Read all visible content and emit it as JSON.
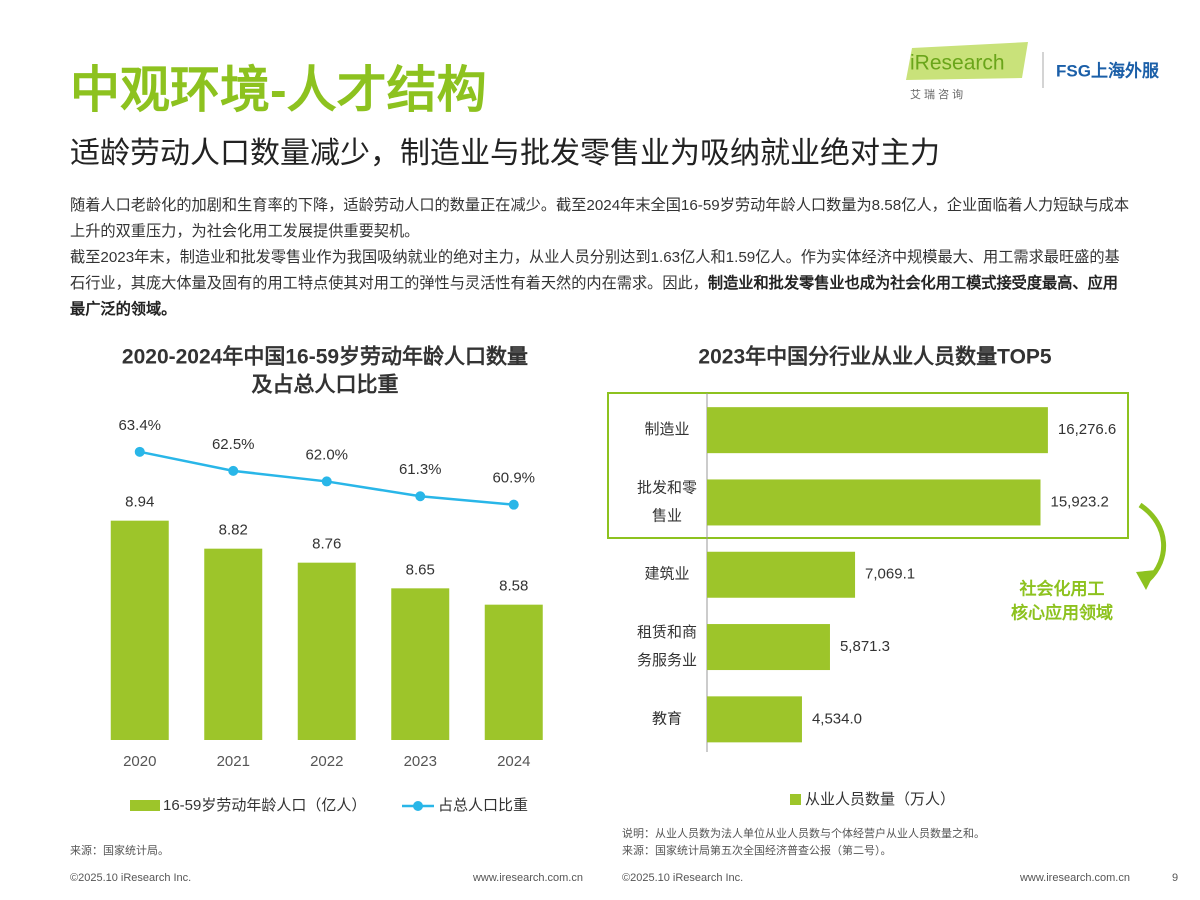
{
  "header": {
    "title": "中观环境-人才结构",
    "subtitle": "适龄劳动人口数量减少，制造业与批发零售业为吸纳就业绝对主力",
    "logo": "iResearch",
    "logo_sub": "艾 瑞 咨 询",
    "partner": "FSG上海外服"
  },
  "body": {
    "paragraphs": [
      [
        "随着人口老龄化的加剧和生育率的下降，适龄劳动人口的数量正在减少。截至2024年末全国16-59岁劳动年龄人口数量为8.58亿人，企业面临着人力短缺与成本上升的双重压力，为社会化用工发展提供重要契机。"
      ],
      [
        "截至2023年末，制造业和批发零售业作为我国吸纳就业的绝对主力，从业人员分别达到1.63亿人和1.59亿人。作为实体经济中规模最大、用工需求最旺盛的基石行业，其庞大体量及固有的用工特点使其对用工的弹性与灵活性有着天然的内在需求。因此，",
        "制造业和批发零售业也成为社会化用工模式接受度最高、应用最广泛的领域。"
      ]
    ]
  },
  "chart_data": [
    {
      "type": "bar_line",
      "title": [
        "2020-2024年中国16-59岁劳动年龄人口数量",
        "及占总人口比重"
      ],
      "categories": [
        "2020",
        "2021",
        "2022",
        "2023",
        "2024"
      ],
      "ylim": [
        8,
        9.2
      ],
      "y2lim": [
        58,
        65
      ],
      "series": [
        {
          "name": "16-59岁劳动年龄人口（亿人）",
          "type": "bar",
          "color": "#9dc52a",
          "values": [
            8.94,
            8.82,
            8.76,
            8.65,
            8.58
          ]
        },
        {
          "name": "占总人口比重",
          "type": "line",
          "axis": "y2",
          "color": "#29b6e8",
          "values": [
            63.4,
            62.5,
            62.0,
            61.3,
            60.9
          ],
          "value_labels": [
            "63.4%",
            "62.5%",
            "62.0%",
            "61.3%",
            "60.9%"
          ]
        }
      ],
      "source": "来源：国家统计局。"
    },
    {
      "type": "hbar",
      "title": "2023年中国分行业从业人员数量TOP5",
      "categories": [
        "制造业",
        "批发和零售业",
        "建筑业",
        "租赁和商务服务业",
        "教育"
      ],
      "xlim": [
        0,
        18000
      ],
      "series": [
        {
          "name": "从业人员数量（万人）",
          "color": "#9dc52a",
          "values": [
            16276.6,
            15923.2,
            7069.1,
            5871.3,
            4534.0
          ],
          "value_labels": [
            "16,276.6",
            "15,923.2",
            "7,069.1",
            "5,871.3",
            "4,534.0"
          ]
        }
      ],
      "annotation": [
        "社会化用工",
        "核心应用领域"
      ],
      "notes": [
        "说明：从业人员数为法人单位从业人员数与个体经营户从业人员数量之和。",
        "来源：国家统计局第五次全国经济普查公报（第二号）。"
      ]
    }
  ],
  "footer": {
    "copyright": "©2025.10 iResearch Inc.",
    "url": "www.iresearch.com.cn",
    "page": "9"
  }
}
